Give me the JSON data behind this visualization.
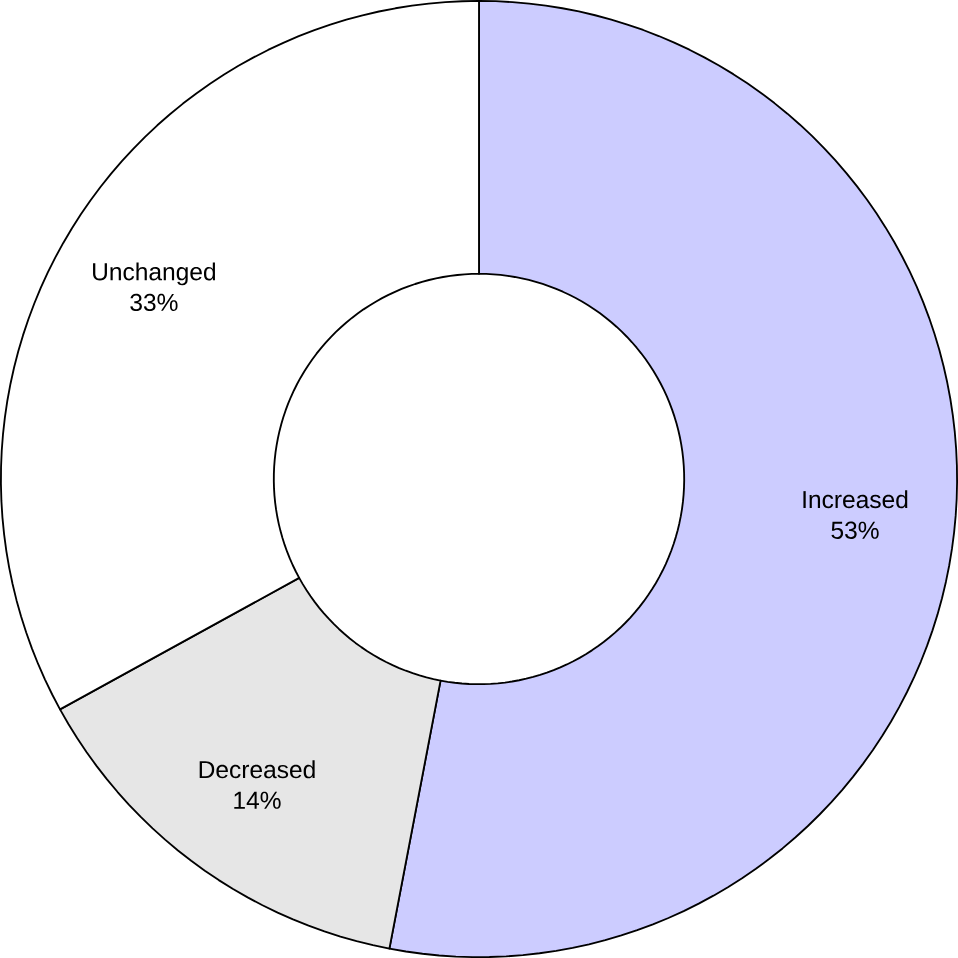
{
  "chart_data": {
    "type": "donut",
    "categories": [
      "Increased",
      "Decreased",
      "Unchanged"
    ],
    "values": [
      53,
      14,
      33
    ],
    "value_labels": [
      "53%",
      "14%",
      "33%"
    ],
    "colors": [
      "#ccccff",
      "#e6e6e6",
      "#ffffff"
    ]
  }
}
